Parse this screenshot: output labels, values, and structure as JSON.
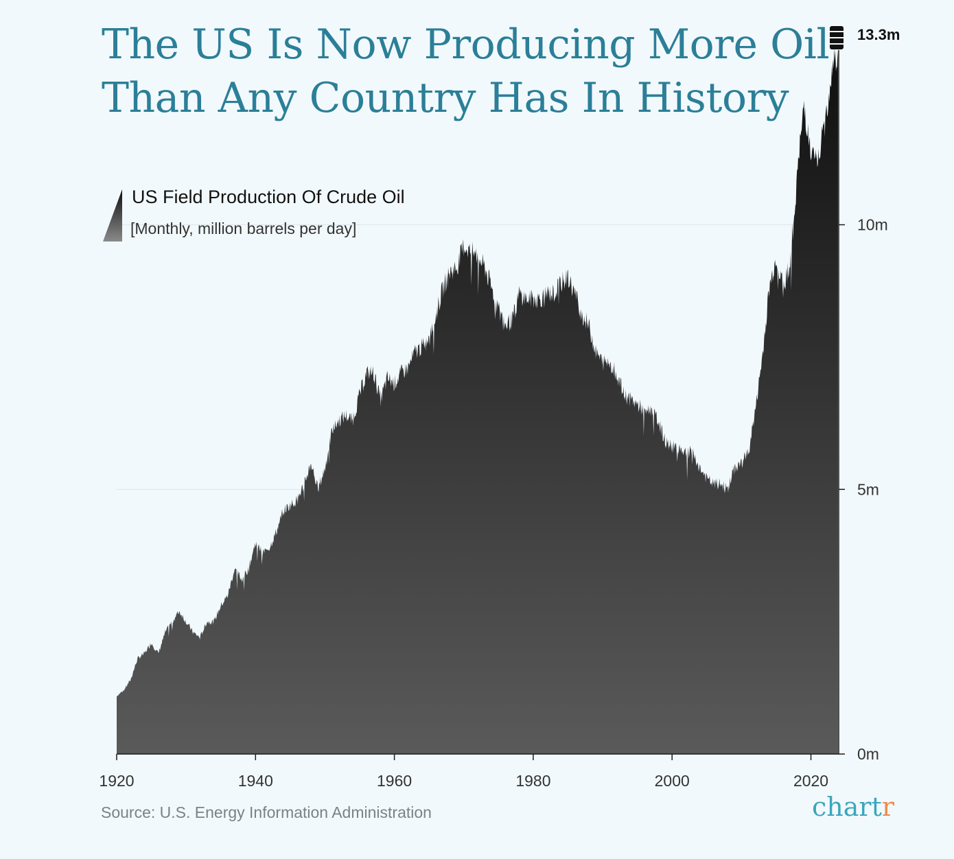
{
  "chart_data": {
    "type": "area",
    "title": [
      "The US Is Now Producing More Oil",
      "Than Any Country Has In History"
    ],
    "series": [
      {
        "name": "US Field Production Of Crude Oil",
        "subtitle": "[Monthly, million barrels per day]",
        "x": [
          1920,
          1921,
          1922,
          1923,
          1924,
          1925,
          1926,
          1927,
          1928,
          1929,
          1930,
          1931,
          1932,
          1933,
          1934,
          1935,
          1936,
          1937,
          1938,
          1939,
          1940,
          1941,
          1942,
          1943,
          1944,
          1945,
          1946,
          1947,
          1948,
          1949,
          1950,
          1951,
          1952,
          1953,
          1954,
          1955,
          1956,
          1957,
          1958,
          1959,
          1960,
          1961,
          1962,
          1963,
          1964,
          1965,
          1966,
          1967,
          1968,
          1969,
          1970,
          1971,
          1972,
          1973,
          1974,
          1975,
          1976,
          1977,
          1978,
          1979,
          1980,
          1981,
          1982,
          1983,
          1984,
          1985,
          1986,
          1987,
          1988,
          1989,
          1990,
          1991,
          1992,
          1993,
          1994,
          1995,
          1996,
          1997,
          1998,
          1999,
          2000,
          2001,
          2002,
          2003,
          2004,
          2005,
          2006,
          2007,
          2008,
          2009,
          2010,
          2011,
          2012,
          2013,
          2014,
          2015,
          2016,
          2017,
          2018,
          2019,
          2020,
          2021,
          2022,
          2023,
          2023.9
        ],
        "values": [
          1.1,
          1.2,
          1.4,
          1.8,
          1.9,
          2.1,
          1.9,
          2.3,
          2.5,
          2.7,
          2.5,
          2.3,
          2.2,
          2.5,
          2.5,
          2.8,
          3.0,
          3.5,
          3.3,
          3.5,
          4.0,
          3.8,
          3.9,
          4.2,
          4.6,
          4.7,
          4.8,
          5.1,
          5.5,
          5.0,
          5.4,
          6.1,
          6.3,
          6.4,
          6.3,
          6.8,
          7.2,
          7.2,
          6.7,
          7.1,
          7.0,
          7.2,
          7.3,
          7.6,
          7.7,
          7.8,
          8.3,
          8.8,
          9.1,
          9.2,
          9.6,
          9.5,
          9.4,
          9.2,
          8.8,
          8.4,
          8.1,
          8.2,
          8.7,
          8.6,
          8.6,
          8.6,
          8.7,
          8.7,
          8.9,
          9.0,
          8.7,
          8.3,
          8.1,
          7.6,
          7.4,
          7.4,
          7.2,
          6.8,
          6.7,
          6.6,
          6.5,
          6.5,
          6.3,
          5.9,
          5.8,
          5.8,
          5.7,
          5.7,
          5.4,
          5.2,
          5.1,
          5.1,
          5.0,
          5.4,
          5.5,
          5.7,
          6.5,
          7.5,
          8.8,
          9.4,
          8.8,
          9.3,
          10.9,
          12.3,
          11.3,
          11.2,
          11.9,
          12.9,
          13.3
        ]
      }
    ],
    "xticks": [
      1920,
      1940,
      1960,
      1980,
      2000,
      2020
    ],
    "xtick_labels": [
      "1920",
      "1940",
      "1960",
      "1980",
      "2000",
      "2020"
    ],
    "yticks": [
      0,
      5,
      10
    ],
    "ytick_labels": [
      "0m",
      "5m",
      "10m"
    ],
    "xlim": [
      1920,
      2024
    ],
    "ylim": [
      0,
      13.3
    ],
    "peak_value": 13.3,
    "peak_label": "13.3m",
    "grid": "horizontal",
    "legend_position": "top-left",
    "colors": {
      "area_top": "#0f0f0f",
      "area_bottom": "#5a5a5a",
      "title": "#2b7f98",
      "background": "#f2f9fc"
    }
  },
  "footer": {
    "source": "Source: U.S. Energy Information Administration",
    "brand_main": "chart",
    "brand_accent": "r"
  }
}
